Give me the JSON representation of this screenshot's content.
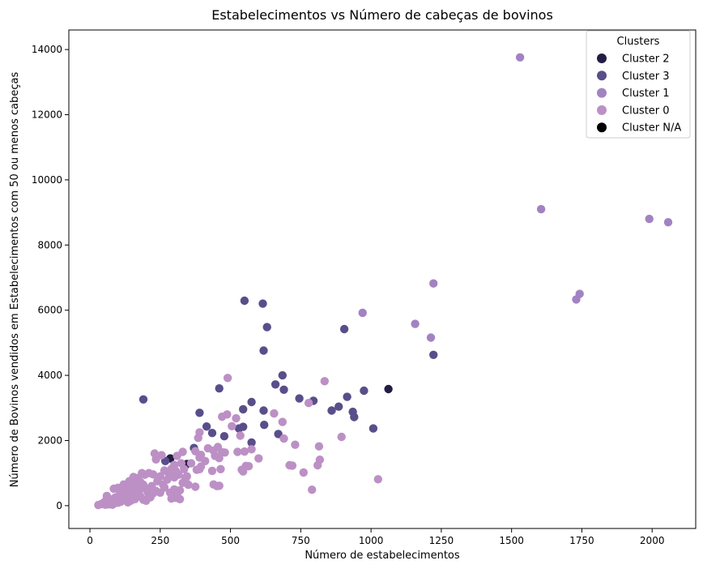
{
  "chart_data": {
    "type": "scatter",
    "title": "Estabelecimentos vs Número de cabeças de bovinos",
    "xlabel": "Número de estabelecimentos",
    "ylabel": "Número de Bovinos vendidos em Estabelecimentos com 50 ou menos cabeças",
    "xlim": [
      -75,
      2155
    ],
    "ylim": [
      -700,
      14600
    ],
    "xticks": [
      0,
      250,
      500,
      750,
      1000,
      1250,
      1500,
      1750,
      2000
    ],
    "yticks": [
      0,
      2000,
      4000,
      6000,
      8000,
      10000,
      12000,
      14000
    ],
    "grid": false,
    "legend": {
      "title": "Clusters",
      "placement": "top-right",
      "entries": [
        {
          "label": "Cluster 2",
          "color": "#231d45"
        },
        {
          "label": "Cluster 3",
          "color": "#5a4e8a"
        },
        {
          "label": "Cluster 1",
          "color": "#a283c2"
        },
        {
          "label": "Cluster 0",
          "color": "#bc90c5"
        },
        {
          "label": "Cluster N/A",
          "color": "#000000"
        }
      ]
    },
    "series": [
      {
        "name": "Cluster 2",
        "color": "#231d45",
        "points": [
          [
            1062,
            3580
          ],
          [
            345,
            1280
          ],
          [
            286,
            1450
          ]
        ]
      },
      {
        "name": "Cluster 3",
        "color": "#5a4e8a",
        "points": [
          [
            190,
            3260
          ],
          [
            390,
            2850
          ],
          [
            415,
            2430
          ],
          [
            435,
            2230
          ],
          [
            460,
            3600
          ],
          [
            478,
            2130
          ],
          [
            530,
            2370
          ],
          [
            545,
            2420
          ],
          [
            545,
            2960
          ],
          [
            550,
            6290
          ],
          [
            575,
            3180
          ],
          [
            575,
            1940
          ],
          [
            615,
            6200
          ],
          [
            618,
            2920
          ],
          [
            618,
            4760
          ],
          [
            620,
            2480
          ],
          [
            630,
            5480
          ],
          [
            660,
            3720
          ],
          [
            670,
            2200
          ],
          [
            685,
            4000
          ],
          [
            690,
            3560
          ],
          [
            745,
            3290
          ],
          [
            795,
            3220
          ],
          [
            860,
            2920
          ],
          [
            885,
            3040
          ],
          [
            905,
            5420
          ],
          [
            915,
            3340
          ],
          [
            935,
            2880
          ],
          [
            940,
            2720
          ],
          [
            975,
            3530
          ],
          [
            1008,
            2370
          ],
          [
            1222,
            4630
          ],
          [
            370,
            1770
          ],
          [
            268,
            1370
          ]
        ]
      },
      {
        "name": "Cluster 1",
        "color": "#a283c2",
        "points": [
          [
            1530,
            13760
          ],
          [
            1605,
            9100
          ],
          [
            1990,
            8800
          ],
          [
            2057,
            8700
          ],
          [
            1222,
            6820
          ],
          [
            1742,
            6500
          ],
          [
            1730,
            6330
          ],
          [
            970,
            5920
          ],
          [
            1157,
            5580
          ],
          [
            1213,
            5160
          ]
        ]
      },
      {
        "name": "Cluster 0",
        "color": "#bc90c5",
        "points": [
          [
            490,
            3920
          ],
          [
            835,
            3820
          ],
          [
            778,
            3150
          ],
          [
            655,
            2830
          ],
          [
            488,
            2800
          ],
          [
            685,
            2570
          ],
          [
            520,
            2680
          ],
          [
            505,
            2440
          ],
          [
            470,
            2730
          ],
          [
            535,
            2150
          ],
          [
            440,
            1690
          ],
          [
            550,
            1660
          ],
          [
            575,
            1730
          ],
          [
            600,
            1450
          ],
          [
            525,
            1650
          ],
          [
            455,
            1800
          ],
          [
            470,
            1640
          ],
          [
            690,
            2060
          ],
          [
            730,
            1870
          ],
          [
            815,
            1820
          ],
          [
            895,
            2110
          ],
          [
            390,
            2250
          ],
          [
            385,
            2080
          ],
          [
            230,
            1600
          ],
          [
            255,
            1550
          ],
          [
            310,
            1530
          ],
          [
            330,
            1650
          ],
          [
            375,
            1670
          ],
          [
            390,
            1480
          ],
          [
            395,
            1560
          ],
          [
            410,
            1370
          ],
          [
            420,
            1760
          ],
          [
            445,
            1530
          ],
          [
            460,
            1460
          ],
          [
            480,
            1630
          ],
          [
            710,
            1240
          ],
          [
            720,
            1230
          ],
          [
            760,
            1020
          ],
          [
            790,
            490
          ],
          [
            810,
            1240
          ],
          [
            818,
            1410
          ],
          [
            1025,
            810
          ],
          [
            440,
            650
          ],
          [
            452,
            600
          ],
          [
            460,
            610
          ],
          [
            435,
            1070
          ],
          [
            465,
            1120
          ],
          [
            545,
            1050
          ],
          [
            540,
            1100
          ],
          [
            555,
            1220
          ],
          [
            565,
            1210
          ],
          [
            235,
            1420
          ],
          [
            265,
            1080
          ],
          [
            300,
            1250
          ],
          [
            325,
            1300
          ],
          [
            360,
            1300
          ],
          [
            380,
            1100
          ],
          [
            395,
            1200
          ],
          [
            210,
            1000
          ],
          [
            225,
            960
          ],
          [
            250,
            900
          ],
          [
            275,
            800
          ],
          [
            300,
            870
          ],
          [
            315,
            950
          ],
          [
            340,
            860
          ],
          [
            375,
            580
          ],
          [
            390,
            1120
          ],
          [
            195,
            950
          ],
          [
            185,
            1000
          ],
          [
            170,
            850
          ],
          [
            155,
            880
          ],
          [
            140,
            750
          ],
          [
            135,
            560
          ],
          [
            120,
            650
          ],
          [
            100,
            550
          ],
          [
            85,
            520
          ],
          [
            205,
            430
          ],
          [
            220,
            600
          ],
          [
            235,
            450
          ],
          [
            250,
            400
          ],
          [
            265,
            560
          ],
          [
            285,
            400
          ],
          [
            295,
            310
          ],
          [
            310,
            350
          ],
          [
            320,
            470
          ],
          [
            330,
            700
          ],
          [
            340,
            820
          ],
          [
            300,
            500
          ],
          [
            305,
            240
          ],
          [
            320,
            200
          ],
          [
            180,
            720
          ],
          [
            190,
            640
          ],
          [
            200,
            520
          ],
          [
            210,
            330
          ],
          [
            175,
            460
          ],
          [
            165,
            300
          ],
          [
            150,
            380
          ],
          [
            140,
            250
          ],
          [
            130,
            180
          ],
          [
            120,
            300
          ],
          [
            110,
            120
          ],
          [
            100,
            90
          ],
          [
            95,
            200
          ],
          [
            85,
            60
          ],
          [
            75,
            150
          ],
          [
            70,
            90
          ],
          [
            65,
            40
          ],
          [
            60,
            230
          ],
          [
            55,
            30
          ],
          [
            50,
            100
          ],
          [
            40,
            50
          ],
          [
            30,
            20
          ],
          [
            155,
            600
          ],
          [
            145,
            480
          ],
          [
            160,
            720
          ],
          [
            170,
            560
          ],
          [
            180,
            280
          ],
          [
            190,
            180
          ],
          [
            200,
            150
          ],
          [
            215,
            260
          ],
          [
            225,
            380
          ],
          [
            240,
            750
          ],
          [
            260,
            650
          ],
          [
            280,
            1000
          ],
          [
            290,
            1130
          ],
          [
            305,
            1070
          ],
          [
            335,
            1120
          ],
          [
            345,
            900
          ],
          [
            350,
            640
          ],
          [
            80,
            30
          ],
          [
            90,
            250
          ],
          [
            105,
            330
          ],
          [
            115,
            430
          ],
          [
            125,
            470
          ],
          [
            135,
            100
          ],
          [
            145,
            150
          ],
          [
            60,
            300
          ],
          [
            70,
            200
          ],
          [
            160,
            200
          ],
          [
            290,
            220
          ]
        ]
      }
    ]
  }
}
